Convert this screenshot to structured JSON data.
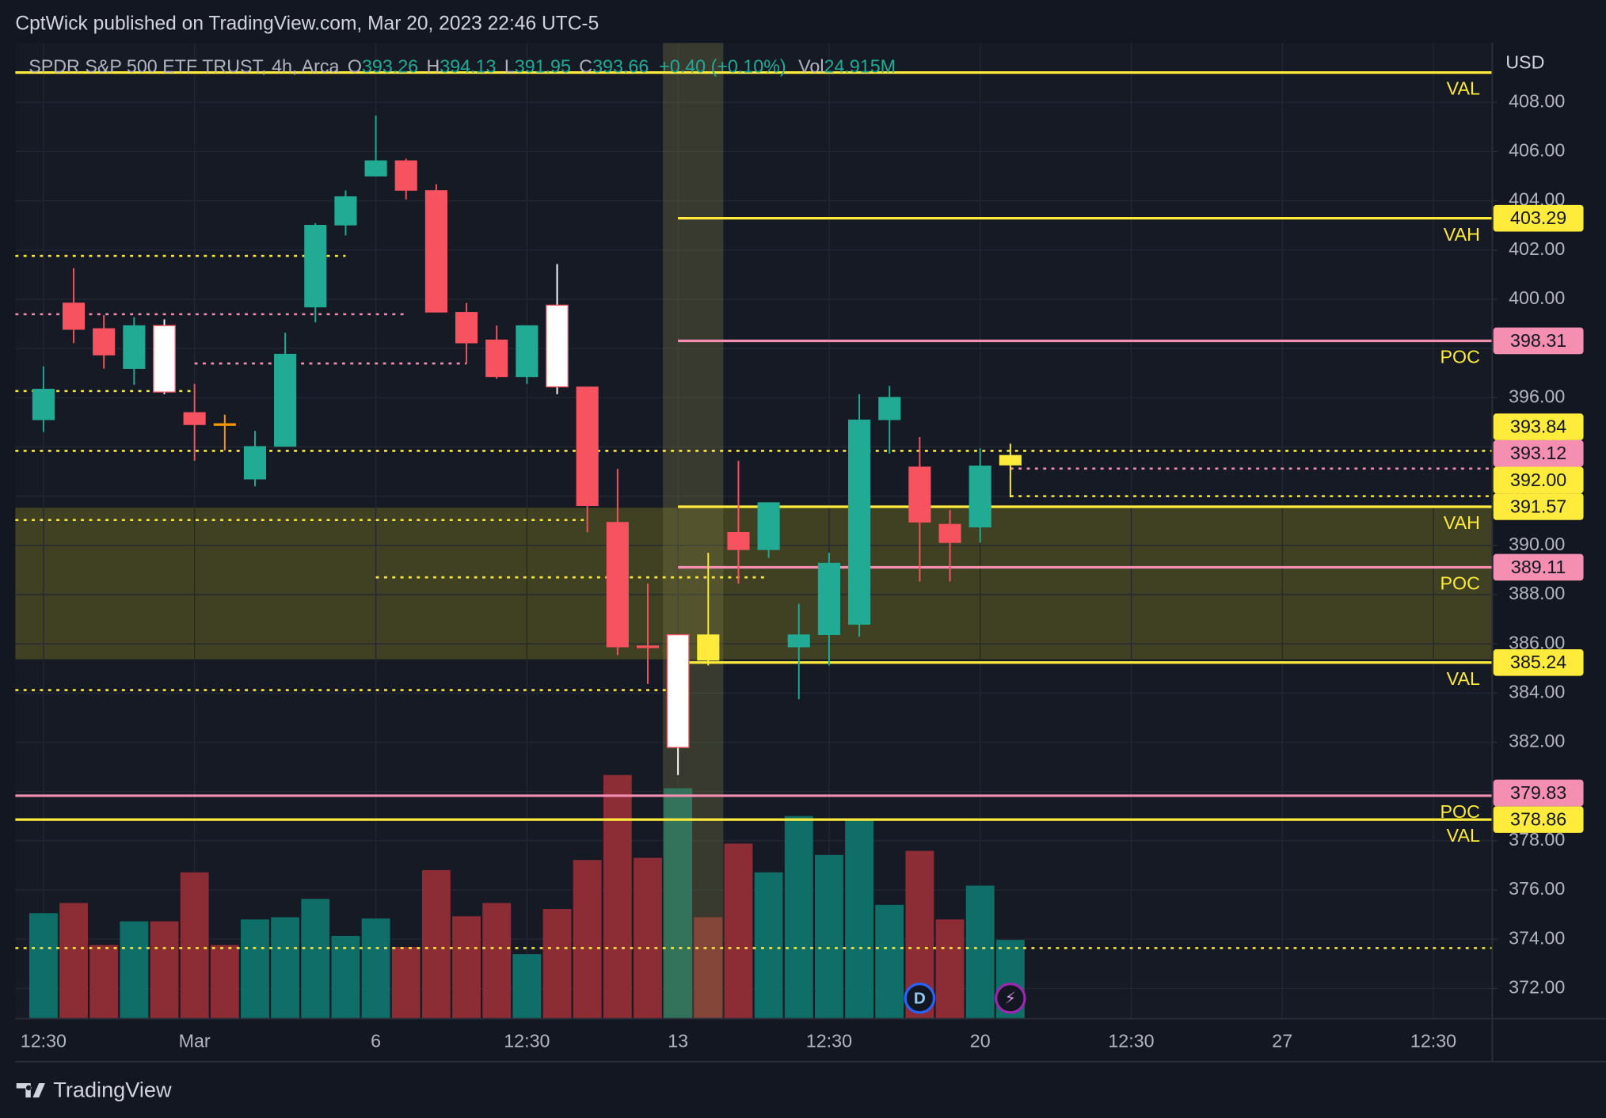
{
  "header": "CptWick published on TradingView.com, Mar 20, 2023 22:46 UTC-5",
  "footer": "TradingView",
  "chart_data": {
    "type": "candlestick",
    "symbol": "SPDR S&P 500 ETF TRUST, 4h, Arca",
    "ohlc_names": [
      "O",
      "H",
      "L",
      "C"
    ],
    "change_label": "+0.40 (+0.10%)",
    "volume_name": "Vol",
    "volume_label": "24.915M",
    "currency": "USD",
    "open": [
      395.1,
      399.85,
      398.81,
      397.18,
      398.93,
      395.4,
      394.95,
      392.69,
      394.02,
      399.68,
      403.01,
      405.0,
      405.63,
      404.42,
      399.47,
      398.35,
      396.85,
      399.76,
      396.44,
      390.94,
      385.92,
      381.79,
      386.37,
      390.53,
      389.82,
      385.87,
      386.37,
      386.79,
      395.1,
      393.19,
      390.86,
      390.74,
      393.26
    ],
    "high": [
      397.27,
      401.26,
      399.35,
      399.27,
      399.18,
      396.56,
      395.31,
      394.65,
      398.64,
      403.09,
      404.42,
      407.46,
      405.71,
      404.67,
      399.85,
      398.93,
      398.93,
      401.43,
      396.44,
      393.11,
      388.45,
      386.37,
      389.7,
      393.44,
      391.74,
      387.62,
      389.7,
      396.14,
      396.48,
      394.4,
      391.44,
      393.94,
      394.13
    ],
    "low": [
      394.61,
      398.22,
      397.18,
      396.52,
      396.14,
      393.44,
      393.86,
      392.4,
      394.02,
      399.06,
      402.59,
      405.0,
      404.05,
      399.47,
      397.39,
      396.77,
      396.56,
      396.14,
      390.53,
      385.54,
      384.37,
      380.67,
      385.12,
      388.45,
      389.49,
      383.75,
      385.12,
      386.29,
      393.73,
      388.53,
      388.53,
      390.11,
      391.95
    ],
    "close": [
      396.35,
      398.77,
      397.73,
      398.93,
      396.23,
      394.9,
      394.9,
      394.02,
      397.77,
      403.01,
      404.17,
      405.63,
      404.42,
      399.47,
      398.22,
      396.85,
      398.93,
      396.44,
      391.61,
      385.87,
      385.87,
      386.37,
      385.33,
      389.82,
      391.74,
      386.37,
      389.28,
      395.1,
      396.02,
      390.94,
      390.11,
      393.23,
      393.66
    ],
    "candle_colors": [
      "#22ab94",
      "#f7525f",
      "#f7525f",
      "#22ab94",
      "#ffffff",
      "#f7525f",
      "#ff9800",
      "#22ab94",
      "#22ab94",
      "#22ab94",
      "#22ab94",
      "#22ab94",
      "#f7525f",
      "#f7525f",
      "#f7525f",
      "#f7525f",
      "#22ab94",
      "#ffffff",
      "#f7525f",
      "#f7525f",
      "#f7525f",
      "#ffffff",
      "#ffeb3b",
      "#f7525f",
      "#22ab94",
      "#22ab94",
      "#22ab94",
      "#22ab94",
      "#22ab94",
      "#f7525f",
      "#f7525f",
      "#22ab94",
      "#ffeb3b"
    ],
    "volume": [
      33.4,
      36.6,
      23.3,
      30.8,
      30.8,
      46.3,
      23.3,
      31.4,
      32.1,
      37.9,
      26.2,
      31.7,
      22.7,
      47.0,
      32.4,
      36.6,
      20.4,
      34.7,
      50.2,
      77.1,
      50.9,
      72.9,
      32.1,
      55.4,
      46.3,
      64.1,
      51.8,
      63.2,
      36.0,
      53.1,
      31.4,
      42.1,
      24.915
    ],
    "volume_up_color": "#0f6f68",
    "volume_down_color": "#8c2c35",
    "vlim": [
      0,
      80
    ],
    "ylim": [
      370.77,
      410.41
    ],
    "yticks": [
      {
        "value": 408,
        "label": "408.00"
      },
      {
        "value": 406,
        "label": "406.00"
      },
      {
        "value": 404,
        "label": "404.00"
      },
      {
        "value": 402,
        "label": "402.00"
      },
      {
        "value": 400,
        "label": "400.00"
      },
      {
        "value": 398,
        "label": "398.00"
      },
      {
        "value": 396,
        "label": "396.00"
      },
      {
        "value": 394,
        "label": "394.00"
      },
      {
        "value": 392,
        "label": "392.00"
      },
      {
        "value": 390,
        "label": "390.00"
      },
      {
        "value": 388,
        "label": "388.00"
      },
      {
        "value": 386,
        "label": "386.00"
      },
      {
        "value": 384,
        "label": "384.00"
      },
      {
        "value": 382,
        "label": "382.00"
      },
      {
        "value": 380,
        "label": "380.00"
      },
      {
        "value": 378,
        "label": "378.00"
      },
      {
        "value": 376,
        "label": "376.00"
      },
      {
        "value": 374,
        "label": "374.00"
      },
      {
        "value": 372,
        "label": "372.00"
      }
    ],
    "xlim": [
      -0.93,
      47.95
    ],
    "xticks": [
      {
        "value": 0,
        "label": "12:30"
      },
      {
        "value": 5,
        "label": "Mar"
      },
      {
        "value": 11,
        "label": "6"
      },
      {
        "value": 16,
        "label": "12:30"
      },
      {
        "value": 21,
        "label": "13"
      },
      {
        "value": 26,
        "label": "12:30"
      },
      {
        "value": 31,
        "label": "20"
      },
      {
        "value": 36,
        "label": "12:30"
      },
      {
        "value": 41,
        "label": "27"
      },
      {
        "value": 46,
        "label": "12:30"
      }
    ],
    "grid": true,
    "zones": [
      {
        "y": [
          385.37,
          391.53
        ],
        "color": "rgba(125,120,30,0.42)"
      }
    ],
    "x_zones": [
      {
        "x": [
          20.5,
          22.5
        ],
        "color": "rgba(120,120,70,0.35)"
      }
    ],
    "levels": [
      {
        "name": "VAL",
        "price": 409.21,
        "color": "#ffeb3b",
        "style": "solid",
        "from": -0.93
      },
      {
        "name": "VAH",
        "price": 403.29,
        "color": "#ffeb3b",
        "style": "solid",
        "from": 21,
        "tag": true
      },
      {
        "name": "POC",
        "price": 398.31,
        "color": "#f48fb1",
        "style": "solid",
        "from": 21,
        "tag": true
      },
      {
        "price": 393.84,
        "color": "#ffeb3b",
        "style": "dotted",
        "from": -0.93,
        "tag": true
      },
      {
        "price": 393.12,
        "color": "#f48fb1",
        "style": "dotted",
        "from": 32,
        "tag": true
      },
      {
        "price": {
          "value": 392,
          "label": "392.00"
        },
        "color": "#ffeb3b",
        "style": "dotted",
        "from": 32,
        "tag": true
      },
      {
        "name": "VAH",
        "price": 391.57,
        "color": "#ffeb3b",
        "style": "solid",
        "from": 21,
        "tag": true
      },
      {
        "name": "POC",
        "price": 389.11,
        "color": "#f48fb1",
        "style": "solid",
        "from": 21,
        "tag": true
      },
      {
        "name": "VAL",
        "price": 385.24,
        "color": "#ffeb3b",
        "style": "solid",
        "from": 21,
        "tag": true
      },
      {
        "name": "POC",
        "price": 379.83,
        "color": "#f48fb1",
        "style": "solid",
        "from": -0.93,
        "tag": true
      },
      {
        "name": "VAL",
        "price": 378.86,
        "color": "#ffeb3b",
        "style": "solid",
        "from": -0.93,
        "tag": true
      },
      {
        "price": 401.76,
        "color": "#ffeb3b",
        "style": "dotted",
        "from": -0.93,
        "to": 10
      },
      {
        "price": 399.39,
        "color": "#f48fb1",
        "style": "dotted",
        "from": -0.93,
        "to": 12
      },
      {
        "price": 397.39,
        "color": "#f48fb1",
        "style": "dotted",
        "from": 5,
        "to": 14
      },
      {
        "price": 396.27,
        "color": "#ffeb3b",
        "style": "dotted",
        "from": -0.93,
        "to": 5
      },
      {
        "price": 391.03,
        "color": "#ffeb3b",
        "style": "dotted",
        "from": -0.93,
        "to": 18
      },
      {
        "price": 388.7,
        "color": "#ffeb3b",
        "style": "dotted",
        "from": 11,
        "to": 24
      },
      {
        "price": 384.12,
        "color": "#ffeb3b",
        "style": "dotted",
        "from": -0.93,
        "to": 21
      },
      {
        "price": 373.64,
        "color": "#ffeb3b",
        "style": "dotted",
        "from": -0.93
      }
    ],
    "markers": [
      {
        "label": "D",
        "x": 29,
        "color": "#2962ff"
      },
      {
        "label": "⚡",
        "x": 32,
        "color": "#9c27b0"
      }
    ]
  }
}
